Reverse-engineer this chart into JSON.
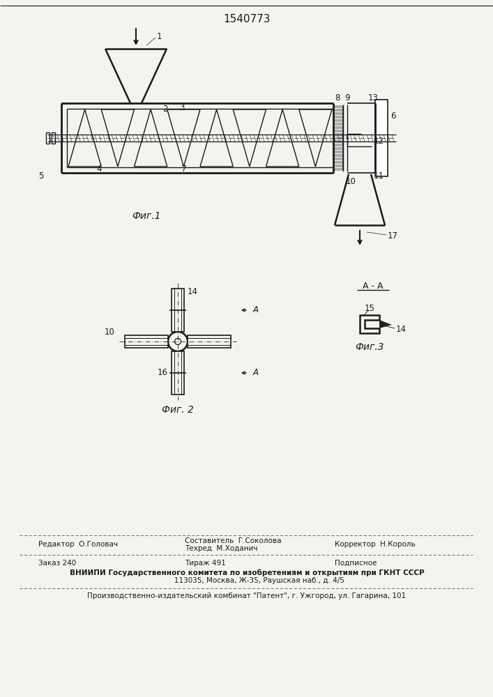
{
  "patent_number": "1540773",
  "bg_color": "#f5f3ef",
  "line_color": "#1a1a1a",
  "fig1_caption": "Фиг.1",
  "fig2_caption": "Фиг. 2",
  "fig3_caption": "Фиг.3",
  "footer": {
    "editor": "Редактор  О.Головач",
    "composer_line1": "Составитель  Г.Соколова",
    "composer_line2": "Техред  М.Ходанич",
    "corrector": "Корректор  Н.Король",
    "order": "Заказ 240",
    "circulation": "Тираж 491",
    "subscription": "Подписное",
    "vniip": "ВНИИПИ Государственного комитета по изобретениям и открытиям при ГКНТ СССР",
    "address": "           113035, Москва, Ж-35, Раушская наб., д. 4/5",
    "publisher": "Производственно-издательский комбинат \"Патент\", г. Ужгород, ул. Гагарина, 101"
  }
}
